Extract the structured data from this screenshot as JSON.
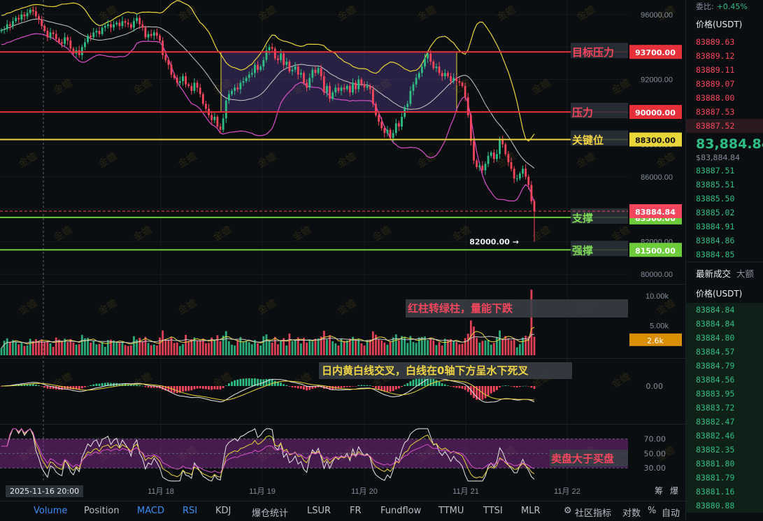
{
  "chart_data": {
    "type": "candlestick",
    "symbol_note": "BTC/USDT price chart with Bollinger bands, volume, MACD and RSI panels",
    "price_axis": {
      "ticks": [
        96000,
        94000,
        92000,
        90000,
        88000,
        86000,
        84000,
        82000,
        80000
      ],
      "range": [
        79400,
        96900
      ]
    },
    "time_axis": {
      "labels": [
        "11月 18",
        "11月 19",
        "11月 20",
        "11月 21",
        "11月 22"
      ]
    },
    "crosshair_time": "2025-11-16 20:00",
    "close_series": [
      95050,
      95100,
      95400,
      95300,
      95600,
      95800,
      95700,
      96000,
      95900,
      96100,
      96300,
      96200,
      95900,
      95700,
      95300,
      95000,
      94600,
      94900,
      94800,
      94500,
      94300,
      94200,
      94600,
      94400,
      93900,
      93600,
      93800,
      93500,
      94000,
      94300,
      94700,
      94600,
      94900,
      95000,
      94800,
      95200,
      95300,
      95400,
      95200,
      95400,
      95500,
      95300,
      95600,
      95500,
      95400,
      95200,
      95600,
      95800,
      95400,
      95200,
      94600,
      94800,
      94700,
      94900,
      94700,
      94400,
      93500,
      93200,
      92900,
      92300,
      92100,
      91800,
      91900,
      92200,
      91700,
      91600,
      91300,
      91800,
      91500,
      91100,
      90500,
      90200,
      89800,
      89500,
      89700,
      89100,
      88900,
      89600,
      90700,
      91100,
      91300,
      91500,
      91400,
      91800,
      91900,
      92100,
      92300,
      92400,
      92900,
      92600,
      92800,
      93200,
      93800,
      94000,
      93900,
      93300,
      93200,
      93600,
      92900,
      93100,
      92500,
      92600,
      92800,
      92300,
      92400,
      91800,
      91500,
      92100,
      92600,
      92400,
      92700,
      92200,
      91200,
      91600,
      90800,
      91200,
      91500,
      91300,
      91500,
      91400,
      91600,
      91200,
      91800,
      91400,
      92000,
      91700,
      91500,
      91600,
      91400,
      90500,
      89800,
      89400,
      89000,
      88700,
      88900,
      88400,
      88700,
      89300,
      89100,
      89700,
      90300,
      90500,
      91300,
      91700,
      92100,
      92400,
      92800,
      93300,
      93600,
      93100,
      92700,
      92800,
      92400,
      92200,
      92400,
      92200,
      91900,
      92100,
      91900,
      91800,
      91600,
      90900,
      89800,
      88200,
      87000,
      86600,
      86700,
      86400,
      86800,
      87300,
      87500,
      87100,
      87400,
      88300,
      88000,
      87400,
      86900,
      86500,
      85900,
      85900,
      86200,
      86500,
      86000,
      85500,
      84500,
      83884.84
    ],
    "bollinger": {
      "note": "upper / middle / lower bands drawn as yellow, white and magenta lines"
    },
    "levels": [
      {
        "label": "目标压力",
        "price": 93700.0,
        "price_label": "93700.00",
        "color": "#e8303a",
        "label_color": "#f6465d"
      },
      {
        "label": "压力",
        "price": 90000.0,
        "price_label": "90000.00",
        "color": "#e8303a",
        "label_color": "#f6465d"
      },
      {
        "label": "关键位",
        "price": 88300.0,
        "price_label": "88300.00",
        "color": "#e8d53a",
        "label_color": "#f0d444"
      },
      {
        "label": "支撑",
        "price": 83500.0,
        "price_label": "83500.00",
        "color": "#6ccc3a",
        "label_color": "#7ed957"
      },
      {
        "label": "强撑",
        "price": 81500.0,
        "price_label": "81500.00",
        "color": "#6ccc3a",
        "label_color": "#7ed957"
      }
    ],
    "current_price": {
      "value": 83884.84,
      "label": "83884.84"
    },
    "low_marker": {
      "value": 82000.0,
      "label": "82000.00"
    },
    "range_box": {
      "price_low": 90000,
      "price_high": 93700
    },
    "volume": {
      "ticks": [
        "10.00k",
        "5.00k"
      ],
      "current_label": "2.6k",
      "annotation": "红柱转绿柱，量能下跌"
    },
    "macd": {
      "tick": "0.00",
      "annotation": "日内黄白线交叉，白线在0轴下方呈水下死叉"
    },
    "rsi": {
      "ticks": [
        "70.00",
        "50.00",
        "30.00"
      ],
      "annotation": "卖盘大于买盘"
    },
    "watermark_text": "金蟾"
  },
  "toolbar": {
    "items": [
      {
        "label": "Volume",
        "active": true
      },
      {
        "label": "Position",
        "active": false
      },
      {
        "label": "MACD",
        "active": true
      },
      {
        "label": "RSI",
        "active": true
      },
      {
        "label": "KDJ",
        "active": false
      },
      {
        "label": "爆仓统计",
        "active": false
      },
      {
        "label": "LSUR",
        "active": false
      },
      {
        "label": "FR",
        "active": false
      },
      {
        "label": "Fundflow",
        "active": false
      },
      {
        "label": "TTMU",
        "active": false
      },
      {
        "label": "TTSI",
        "active": false
      },
      {
        "label": "MLR",
        "active": false
      }
    ],
    "community_label": "社区指标",
    "log_label": "对数",
    "percent_label": "%",
    "auto_label": "自动",
    "corner_labels": [
      "筹",
      "爆"
    ]
  },
  "orderbook": {
    "ratio_label": "委比:",
    "ratio_value": "+0.45%",
    "price_header": "价格(USDT)",
    "asks": [
      "83889.63",
      "83889.12",
      "83889.11",
      "83889.07",
      "83888.00",
      "83887.53",
      "83887.52"
    ],
    "last_price": "83,884.84",
    "last_price_small": "$83,884.84",
    "bids": [
      "83887.51",
      "83885.51",
      "83885.50",
      "83885.02",
      "83884.91",
      "83884.86",
      "83884.85"
    ],
    "trades_tab": "最新成交",
    "big_trades_tab": "大额",
    "trades_header": "价格(USDT)",
    "trades": [
      "83884.84",
      "83884.84",
      "83884.80",
      "83884.57",
      "83884.79",
      "83884.56",
      "83883.95",
      "83883.72",
      "83882.47",
      "83882.46",
      "83882.35",
      "83881.80",
      "83881.79",
      "83881.16",
      "83880.88"
    ]
  }
}
